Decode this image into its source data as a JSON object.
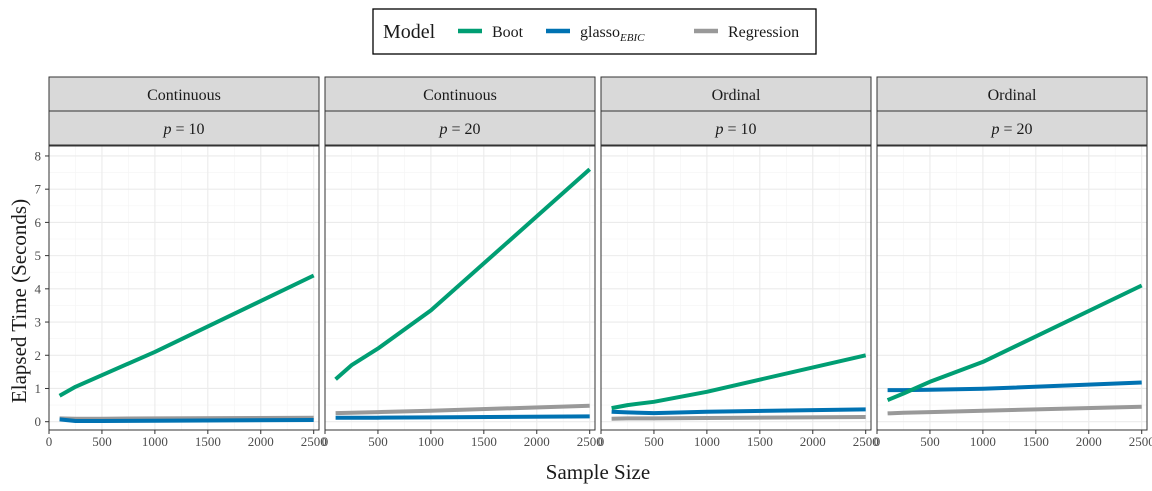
{
  "chart_data": {
    "type": "line",
    "xlabel": "Sample Size",
    "ylabel": "Elapsed Time (Seconds)",
    "xlim": [
      0,
      2550
    ],
    "ylim": [
      -0.25,
      8.3
    ],
    "x_ticks": [
      0,
      500,
      1000,
      1500,
      2000,
      2500
    ],
    "y_ticks": [
      0,
      1,
      2,
      3,
      4,
      5,
      6,
      7,
      8
    ],
    "grid": true,
    "legend": {
      "title": "Model",
      "position": "top",
      "entries": [
        {
          "name": "Boot",
          "sub": "",
          "color": "#009E73"
        },
        {
          "name": "glasso",
          "sub": "EBIC",
          "color": "#0072B2"
        },
        {
          "name": "Regression",
          "sub": "",
          "color": "#999999"
        }
      ]
    },
    "facets": [
      {
        "strip_top": "Continuous",
        "strip_var": "p",
        "strip_val": " = 10",
        "series": [
          {
            "name": "Boot",
            "color": "#009E73",
            "x": [
              100,
              250,
              500,
              1000,
              2500
            ],
            "y": [
              0.78,
              1.05,
              1.4,
              2.1,
              4.4
            ]
          },
          {
            "name": "glasso",
            "color": "#0072B2",
            "x": [
              100,
              250,
              500,
              1000,
              2500
            ],
            "y": [
              0.07,
              0.02,
              0.02,
              0.03,
              0.05
            ]
          },
          {
            "name": "Regression",
            "color": "#999999",
            "x": [
              100,
              250,
              500,
              1000,
              2500
            ],
            "y": [
              0.1,
              0.09,
              0.09,
              0.1,
              0.12
            ]
          }
        ]
      },
      {
        "strip_top": "Continuous",
        "strip_var": "p",
        "strip_val": " = 20",
        "series": [
          {
            "name": "Boot",
            "color": "#009E73",
            "x": [
              100,
              250,
              500,
              1000,
              2500
            ],
            "y": [
              1.28,
              1.7,
              2.2,
              3.35,
              7.6
            ]
          },
          {
            "name": "glasso",
            "color": "#0072B2",
            "x": [
              100,
              250,
              500,
              1000,
              2500
            ],
            "y": [
              0.12,
              0.12,
              0.12,
              0.13,
              0.16
            ]
          },
          {
            "name": "Regression",
            "color": "#999999",
            "x": [
              100,
              250,
              500,
              1000,
              2500
            ],
            "y": [
              0.26,
              0.27,
              0.29,
              0.33,
              0.48
            ]
          }
        ]
      },
      {
        "strip_top": "Ordinal",
        "strip_var": "p",
        "strip_val": " = 10",
        "series": [
          {
            "name": "Boot",
            "color": "#009E73",
            "x": [
              100,
              250,
              500,
              1000,
              2500
            ],
            "y": [
              0.41,
              0.5,
              0.6,
              0.9,
              2.0
            ]
          },
          {
            "name": "glasso",
            "color": "#0072B2",
            "x": [
              100,
              250,
              500,
              1000,
              2500
            ],
            "y": [
              0.3,
              0.28,
              0.26,
              0.3,
              0.37
            ]
          },
          {
            "name": "Regression",
            "color": "#999999",
            "x": [
              100,
              250,
              500,
              1000,
              2500
            ],
            "y": [
              0.09,
              0.1,
              0.1,
              0.11,
              0.14
            ]
          }
        ]
      },
      {
        "strip_top": "Ordinal",
        "strip_var": "p",
        "strip_val": " = 20",
        "series": [
          {
            "name": "Boot",
            "color": "#009E73",
            "x": [
              100,
              250,
              500,
              1000,
              2500
            ],
            "y": [
              0.65,
              0.85,
              1.2,
              1.8,
              4.1
            ]
          },
          {
            "name": "glasso",
            "color": "#0072B2",
            "x": [
              100,
              250,
              500,
              1000,
              2500
            ],
            "y": [
              0.95,
              0.95,
              0.96,
              0.99,
              1.18
            ]
          },
          {
            "name": "Regression",
            "color": "#999999",
            "x": [
              100,
              250,
              500,
              1000,
              2500
            ],
            "y": [
              0.25,
              0.27,
              0.29,
              0.33,
              0.45
            ]
          }
        ]
      }
    ]
  }
}
